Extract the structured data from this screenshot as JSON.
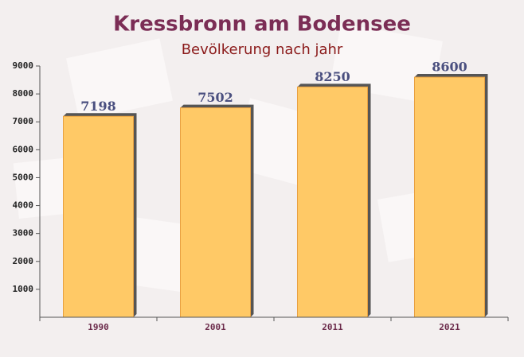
{
  "chart_data": {
    "type": "bar",
    "title": "Kressbronn am Bodensee",
    "subtitle": "Bevölkerung nach jahr",
    "categories": [
      "1990",
      "2001",
      "2011",
      "2021"
    ],
    "values": [
      7198,
      7502,
      8250,
      8600
    ],
    "color": "#ffc966",
    "ylim": [
      0,
      9000
    ],
    "yticks": [
      1000,
      2000,
      3000,
      4000,
      5000,
      6000,
      7000,
      8000,
      9000
    ],
    "grid": false
  }
}
